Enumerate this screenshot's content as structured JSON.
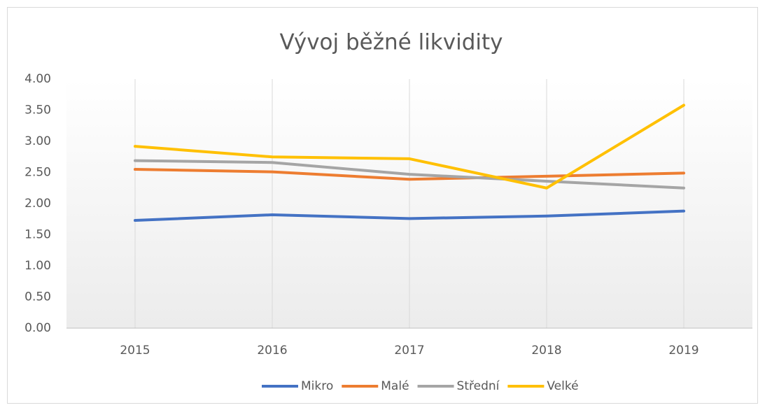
{
  "chart_data": {
    "type": "line",
    "title": "Vývoj běžné likvidity",
    "categories": [
      "2015",
      "2016",
      "2017",
      "2018",
      "2019"
    ],
    "series": [
      {
        "name": "Mikro",
        "color": "#4472c4",
        "values": [
          1.73,
          1.82,
          1.76,
          1.8,
          1.88
        ]
      },
      {
        "name": "Malé",
        "color": "#ed7d31",
        "values": [
          2.55,
          2.51,
          2.39,
          2.44,
          2.49
        ]
      },
      {
        "name": "Střední",
        "color": "#a5a5a5",
        "values": [
          2.69,
          2.66,
          2.47,
          2.36,
          2.25
        ]
      },
      {
        "name": "Velké",
        "color": "#ffc000",
        "values": [
          2.92,
          2.75,
          2.72,
          2.25,
          3.58
        ]
      }
    ],
    "ylim": [
      0,
      4
    ],
    "yticks": [
      {
        "value": 0,
        "label": "0.00"
      },
      {
        "value": 0.5,
        "label": "0.50"
      },
      {
        "value": 1,
        "label": "1.00"
      },
      {
        "value": 1.5,
        "label": "1.50"
      },
      {
        "value": 2,
        "label": "2.00"
      },
      {
        "value": 2.5,
        "label": "2.50"
      },
      {
        "value": 3,
        "label": "3.00"
      },
      {
        "value": 3.5,
        "label": "3.50"
      },
      {
        "value": 4,
        "label": "4.00"
      }
    ],
    "legend": "bottom"
  }
}
